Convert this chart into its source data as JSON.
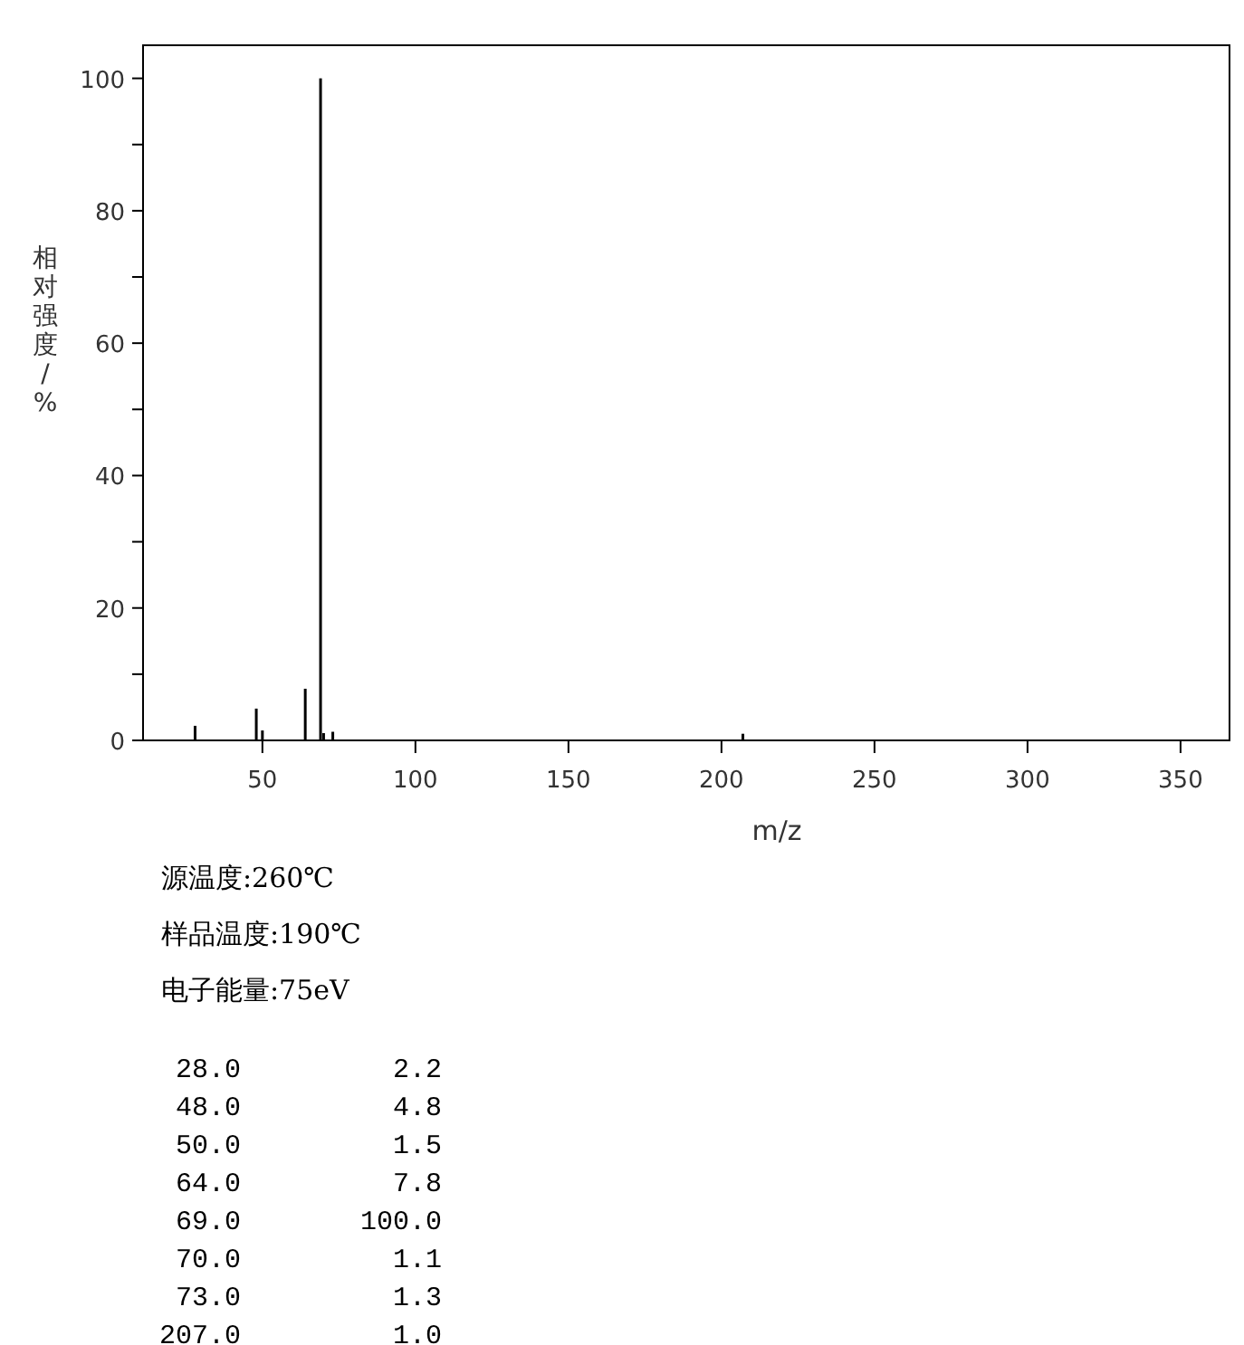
{
  "chart_data": {
    "type": "bar",
    "xlabel": "m/z",
    "ylabel": "相对强度/%",
    "x": [
      28,
      48,
      50,
      64,
      69,
      70,
      73,
      207
    ],
    "values": [
      2.2,
      4.8,
      1.5,
      7.8,
      100,
      1.1,
      1.3,
      1.0
    ],
    "color": "#000000",
    "xlim": [
      11,
      366
    ],
    "ylim": [
      0,
      105
    ],
    "xticks": [
      50,
      100,
      150,
      200,
      250,
      300,
      350
    ],
    "yticks": [
      0,
      {
        "value": 10,
        "label": null
      },
      20,
      {
        "value": 30,
        "label": null
      },
      40,
      {
        "value": 50,
        "label": null
      },
      60,
      {
        "value": 70,
        "label": null
      },
      80,
      {
        "value": 90,
        "label": null
      },
      100
    ],
    "annotations": [
      "源温度:260℃",
      "样品温度:190℃",
      "电子能量:75eV",
      "28.0",
      "2.2",
      "48.0",
      "4.8",
      "50.0",
      "1.5",
      "64.0",
      "7.8",
      "69.0",
      "100.0",
      "70.0",
      "1.1",
      "73.0",
      "1.3",
      "207.0",
      "1.0"
    ]
  }
}
